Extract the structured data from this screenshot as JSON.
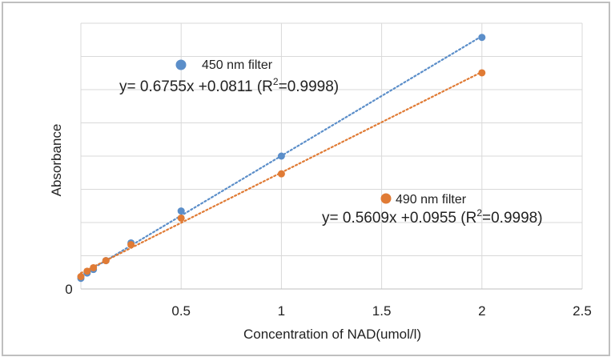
{
  "chart_data": {
    "type": "scatter",
    "title": "",
    "xlabel": "Concentration of NAD(umol/l)",
    "ylabel": "Absorbance",
    "xlim": [
      0,
      2.5
    ],
    "ylim": [
      0,
      1.5
    ],
    "x_ticks": [
      "0.5",
      "1",
      "1.5",
      "2",
      "2.5"
    ],
    "y_ticks": [
      "0"
    ],
    "grid": true,
    "series": [
      {
        "name": "450 nm filter",
        "color": "#5b8ec9",
        "equation": {
          "prefix": "y= 0.6755x +0.0811 (R",
          "sup": "2",
          "suffix": "=0.9998)"
        },
        "x": [
          0,
          0.03125,
          0.0625,
          0.125,
          0.25,
          0.5,
          1,
          2
        ],
        "y": [
          0.06,
          0.09,
          0.11,
          0.16,
          0.26,
          0.44,
          0.75,
          1.42
        ]
      },
      {
        "name": "490 nm filter",
        "color": "#e07b35",
        "equation": {
          "prefix": "y= 0.5609x +0.0955 (R",
          "sup": "2",
          "suffix": "=0.9998)"
        },
        "x": [
          0,
          0.03125,
          0.0625,
          0.125,
          0.25,
          0.5,
          1,
          2
        ],
        "y": [
          0.07,
          0.1,
          0.12,
          0.16,
          0.25,
          0.4,
          0.65,
          1.22
        ]
      }
    ]
  }
}
